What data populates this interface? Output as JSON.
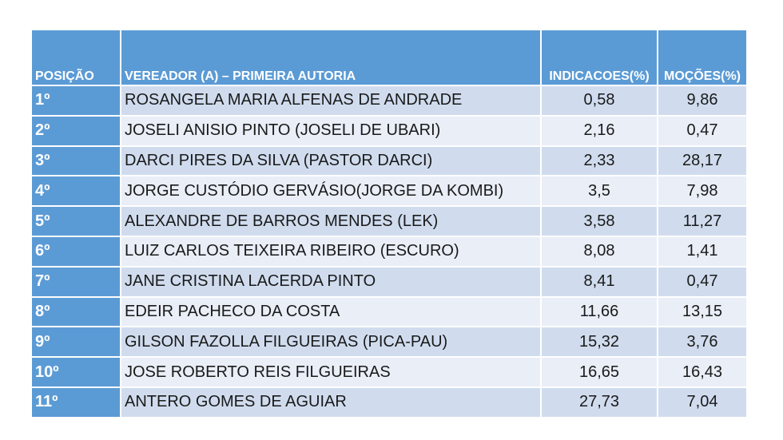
{
  "colors": {
    "header_bg": "#5b9bd5",
    "row_odd": "#d0dcee",
    "row_even": "#e9eef7"
  },
  "headers": {
    "posicao": "POSIÇÃO",
    "vereador": "VEREADOR (A) – PRIMEIRA AUTORIA",
    "indicacoes": "INDICACOES(%)",
    "mocoes": "MOÇÕES(%)"
  },
  "rows": [
    {
      "pos": "1º",
      "name": "ROSANGELA MARIA ALFENAS DE ANDRADE",
      "indicacoes": "0,58",
      "mocoes": "9,86"
    },
    {
      "pos": "2º",
      "name": "JOSELI ANISIO PINTO (JOSELI DE UBARI)",
      "indicacoes": "2,16",
      "mocoes": "0,47"
    },
    {
      "pos": "3º",
      "name": "DARCI PIRES DA SILVA (PASTOR DARCI)",
      "indicacoes": "2,33",
      "mocoes": "28,17"
    },
    {
      "pos": "4º",
      "name": "JORGE CUSTÓDIO GERVÁSIO(JORGE DA KOMBI)",
      "indicacoes": "3,5",
      "mocoes": "7,98"
    },
    {
      "pos": "5º",
      "name": "ALEXANDRE DE BARROS MENDES (LEK)",
      "indicacoes": "3,58",
      "mocoes": "11,27"
    },
    {
      "pos": "6º",
      "name": "LUIZ CARLOS TEIXEIRA RIBEIRO (ESCURO)",
      "indicacoes": "8,08",
      "mocoes": "1,41"
    },
    {
      "pos": "7º",
      "name": "JANE CRISTINA LACERDA PINTO",
      "indicacoes": "8,41",
      "mocoes": "0,47"
    },
    {
      "pos": "8º",
      "name": "EDEIR PACHECO DA COSTA",
      "indicacoes": "11,66",
      "mocoes": "13,15"
    },
    {
      "pos": "9º",
      "name": "GILSON FAZOLLA FILGUEIRAS (PICA-PAU)",
      "indicacoes": "15,32",
      "mocoes": "3,76"
    },
    {
      "pos": "10º",
      "name": "JOSE ROBERTO REIS FILGUEIRAS",
      "indicacoes": "16,65",
      "mocoes": "16,43"
    },
    {
      "pos": "11º",
      "name": "ANTERO GOMES DE AGUIAR",
      "indicacoes": "27,73",
      "mocoes": "7,04"
    }
  ]
}
